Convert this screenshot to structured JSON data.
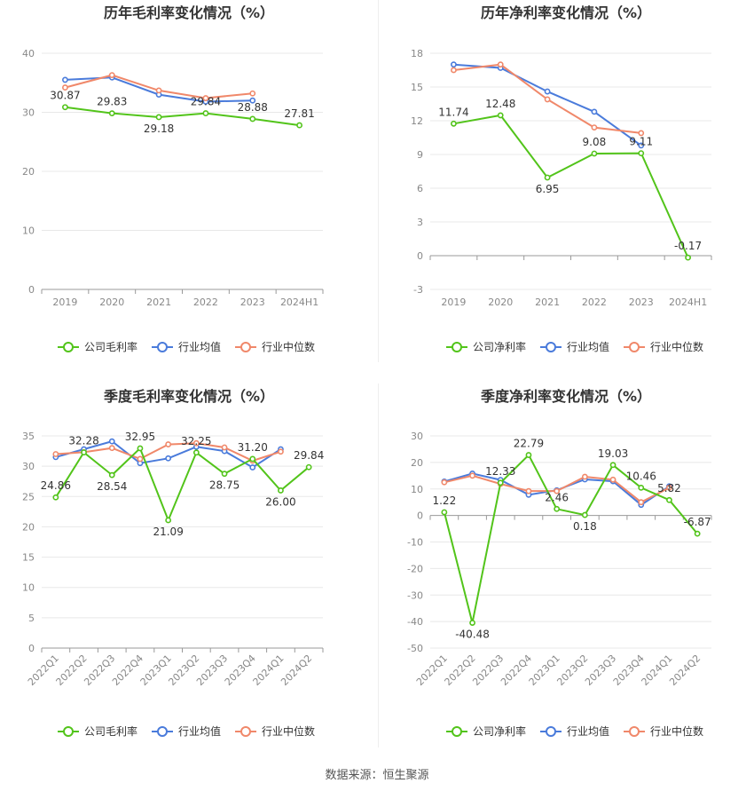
{
  "source": "数据来源：恒生聚源",
  "colors": {
    "company": "#52c41a",
    "avg": "#4a7bdb",
    "median": "#f0886a",
    "grid": "#e8e8e8",
    "axis": "#999999"
  },
  "chart_data": [
    {
      "type": "line",
      "title": "历年毛利率变化情况（%）",
      "categories": [
        "2019",
        "2020",
        "2021",
        "2022",
        "2023",
        "2024H1"
      ],
      "ylim": [
        0,
        40
      ],
      "yticks": [
        0,
        10,
        20,
        30,
        40
      ],
      "legend": "bottom",
      "grid": true,
      "series": [
        {
          "name": "公司毛利率",
          "color": "#52c41a",
          "labeled": true,
          "values": [
            30.87,
            29.83,
            29.18,
            29.84,
            28.88,
            27.81
          ]
        },
        {
          "name": "行业均值",
          "color": "#4a7bdb",
          "values": [
            35.5,
            35.9,
            33.0,
            31.8,
            32.0,
            null
          ]
        },
        {
          "name": "行业中位数",
          "color": "#f0886a",
          "values": [
            34.2,
            36.3,
            33.7,
            32.4,
            33.2,
            null
          ]
        }
      ]
    },
    {
      "type": "line",
      "title": "历年净利率变化情况（%）",
      "categories": [
        "2019",
        "2020",
        "2021",
        "2022",
        "2023",
        "2024H1"
      ],
      "ylim": [
        -3,
        18
      ],
      "yticks": [
        -3,
        0,
        3,
        6,
        9,
        12,
        15,
        18
      ],
      "legend": "bottom",
      "grid": true,
      "series": [
        {
          "name": "公司净利率",
          "color": "#52c41a",
          "labeled": true,
          "values": [
            11.74,
            12.48,
            6.95,
            9.08,
            9.11,
            -0.17
          ]
        },
        {
          "name": "行业均值",
          "color": "#4a7bdb",
          "values": [
            17.0,
            16.7,
            14.6,
            12.8,
            9.8,
            null
          ]
        },
        {
          "name": "行业中位数",
          "color": "#f0886a",
          "values": [
            16.5,
            17.0,
            13.9,
            11.4,
            10.9,
            null
          ]
        }
      ]
    },
    {
      "type": "line",
      "title": "季度毛利率变化情况（%）",
      "categories": [
        "2022Q1",
        "2022Q2",
        "2022Q3",
        "2022Q4",
        "2023Q1",
        "2023Q2",
        "2023Q3",
        "2023Q4",
        "2024Q1",
        "2024Q2"
      ],
      "ylim": [
        0,
        35
      ],
      "yticks": [
        0,
        5,
        10,
        15,
        20,
        25,
        30,
        35
      ],
      "legend": "bottom",
      "grid": true,
      "rotate_x_labels": true,
      "series": [
        {
          "name": "公司毛利率",
          "color": "#52c41a",
          "labeled": true,
          "values": [
            24.86,
            32.28,
            28.54,
            32.95,
            21.09,
            32.25,
            28.75,
            31.2,
            26.0,
            29.84
          ]
        },
        {
          "name": "行业均值",
          "color": "#4a7bdb",
          "values": [
            31.5,
            32.8,
            34.1,
            30.5,
            31.3,
            33.2,
            32.5,
            29.8,
            32.8,
            null
          ]
        },
        {
          "name": "行业中位数",
          "color": "#f0886a",
          "values": [
            32.0,
            32.3,
            33.0,
            31.2,
            33.6,
            33.8,
            33.1,
            30.9,
            32.4,
            null
          ]
        }
      ]
    },
    {
      "type": "line",
      "title": "季度净利率变化情况（%）",
      "categories": [
        "2022Q1",
        "2022Q2",
        "2022Q3",
        "2022Q4",
        "2023Q1",
        "2023Q2",
        "2023Q3",
        "2023Q4",
        "2024Q1",
        "2024Q2"
      ],
      "ylim": [
        -50,
        30
      ],
      "yticks": [
        -50,
        -40,
        -30,
        -20,
        -10,
        0,
        10,
        20,
        30
      ],
      "legend": "bottom",
      "grid": true,
      "rotate_x_labels": true,
      "series": [
        {
          "name": "公司净利率",
          "color": "#52c41a",
          "labeled": true,
          "values": [
            1.22,
            -40.48,
            12.33,
            22.79,
            2.46,
            0.18,
            19.03,
            10.46,
            5.82,
            -6.87
          ]
        },
        {
          "name": "行业均值",
          "color": "#4a7bdb",
          "values": [
            12.8,
            15.8,
            13.4,
            7.8,
            9.5,
            13.6,
            12.9,
            4.0,
            11.0,
            null
          ]
        },
        {
          "name": "行业中位数",
          "color": "#f0886a",
          "values": [
            12.5,
            15.0,
            11.9,
            9.2,
            9.2,
            14.6,
            13.5,
            5.0,
            10.5,
            null
          ]
        }
      ]
    }
  ]
}
